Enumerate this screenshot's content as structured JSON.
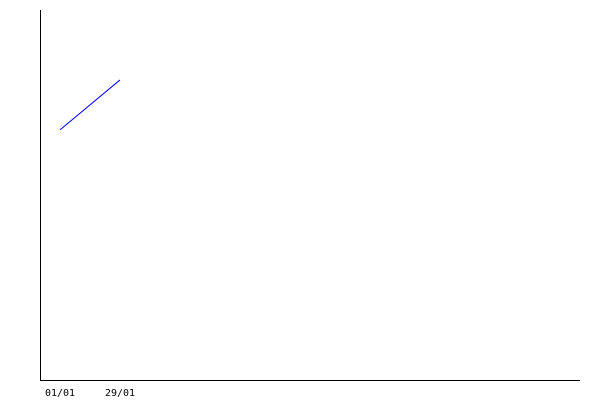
{
  "chart_data": {
    "type": "line",
    "categories": [
      "01/01",
      "29/01"
    ],
    "series": [
      {
        "color": "#0000ff",
        "values": [
          67.6,
          81.1
        ]
      }
    ],
    "ylim": [
      0,
      100
    ]
  }
}
